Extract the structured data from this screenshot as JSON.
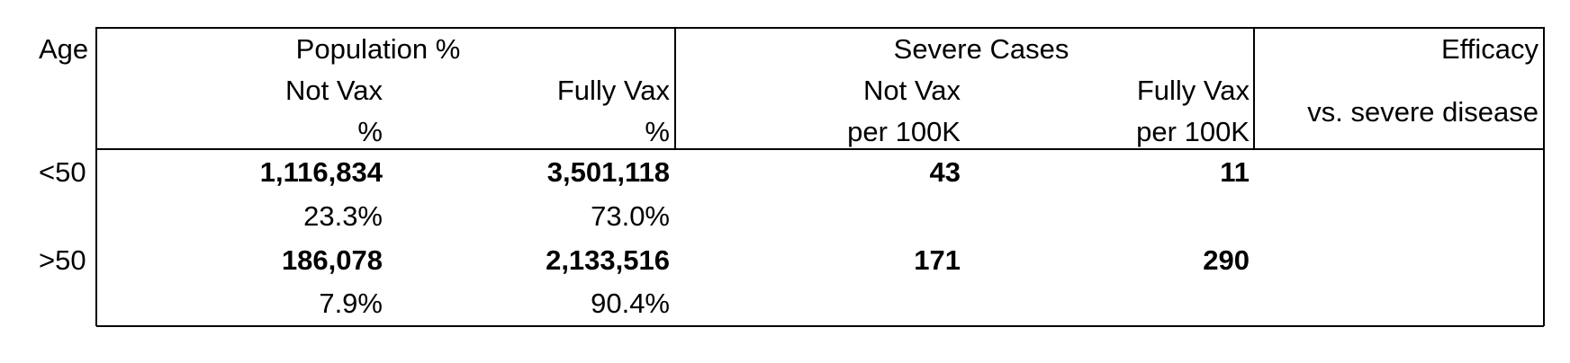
{
  "header": {
    "age_label": "Age",
    "population_group": "Population %",
    "severe_group": "Severe Cases",
    "efficacy_label": "Efficacy",
    "efficacy_sub": "vs. severe disease",
    "pop_not_vax": "Not Vax",
    "pop_not_vax_unit": "%",
    "pop_fully_vax": "Fully Vax",
    "pop_fully_vax_unit": "%",
    "sev_not_vax": "Not Vax",
    "sev_not_vax_unit": "per 100K",
    "sev_fully_vax": "Fully Vax",
    "sev_fully_vax_unit": "per 100K"
  },
  "rows": [
    {
      "age": "<50",
      "not_vax_count": "1,116,834",
      "fully_vax_count": "3,501,118",
      "not_vax_pct": "23.3%",
      "fully_vax_pct": "73.0%",
      "severe_not_vax": "43",
      "severe_fully_vax": "11",
      "efficacy": ""
    },
    {
      "age": ">50",
      "not_vax_count": "186,078",
      "fully_vax_count": "2,133,516",
      "not_vax_pct": "7.9%",
      "fully_vax_pct": "90.4%",
      "severe_not_vax": "171",
      "severe_fully_vax": "290",
      "efficacy": ""
    }
  ]
}
